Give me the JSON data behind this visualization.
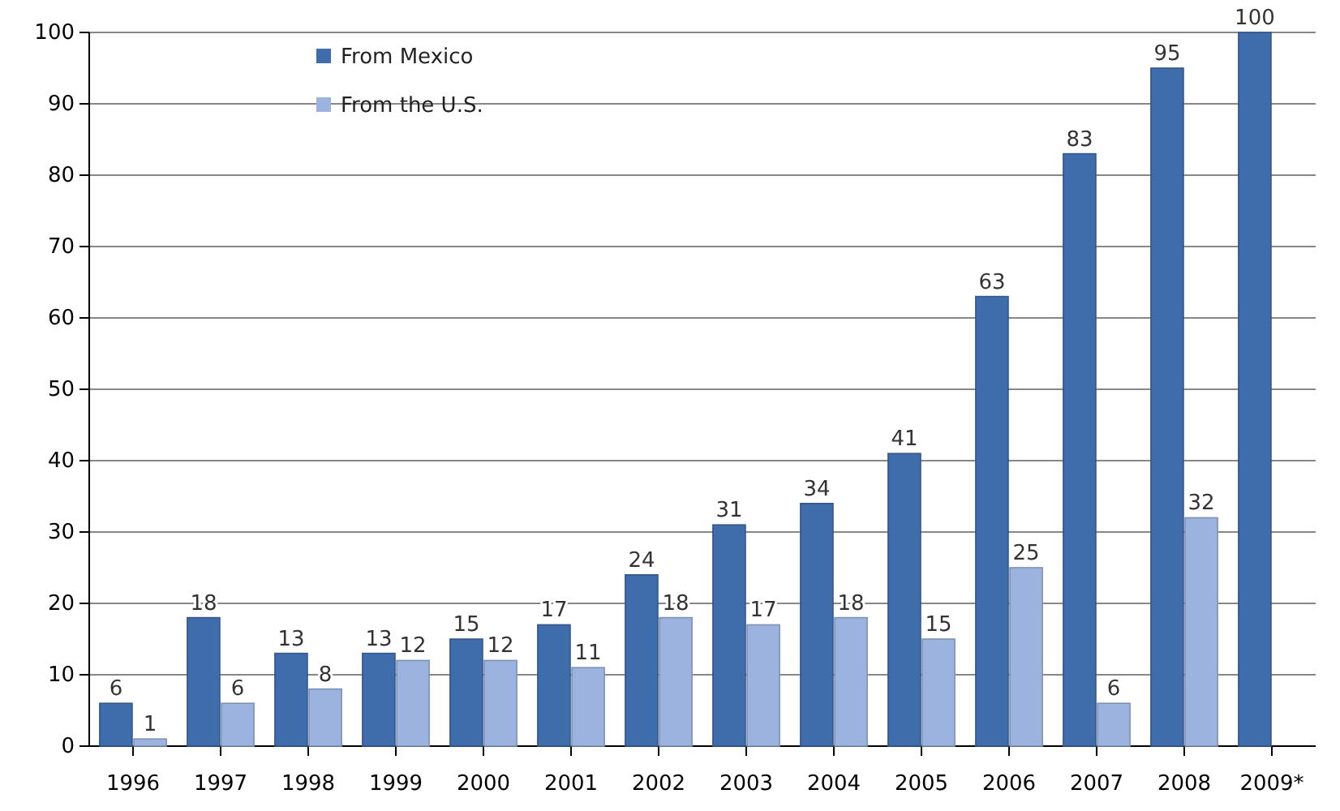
{
  "chart_data": {
    "type": "bar",
    "categories": [
      "1996",
      "1997",
      "1998",
      "1999",
      "2000",
      "2001",
      "2002",
      "2003",
      "2004",
      "2005",
      "2006",
      "2007",
      "2008",
      "2009*"
    ],
    "series": [
      {
        "name": "From Mexico",
        "color": "#3f6cab",
        "values": [
          6,
          18,
          13,
          13,
          15,
          17,
          24,
          31,
          34,
          41,
          63,
          83,
          95,
          100
        ]
      },
      {
        "name": "From the U.S.",
        "color": "#9bb3de",
        "values": [
          1,
          6,
          8,
          12,
          12,
          11,
          18,
          17,
          18,
          15,
          25,
          6,
          32,
          null
        ]
      }
    ],
    "ylim": [
      0,
      100
    ],
    "yticks": [
      0,
      10,
      20,
      30,
      40,
      50,
      60,
      70,
      80,
      90,
      100
    ],
    "grid": "y",
    "legend": "top left",
    "data_labels": true
  }
}
